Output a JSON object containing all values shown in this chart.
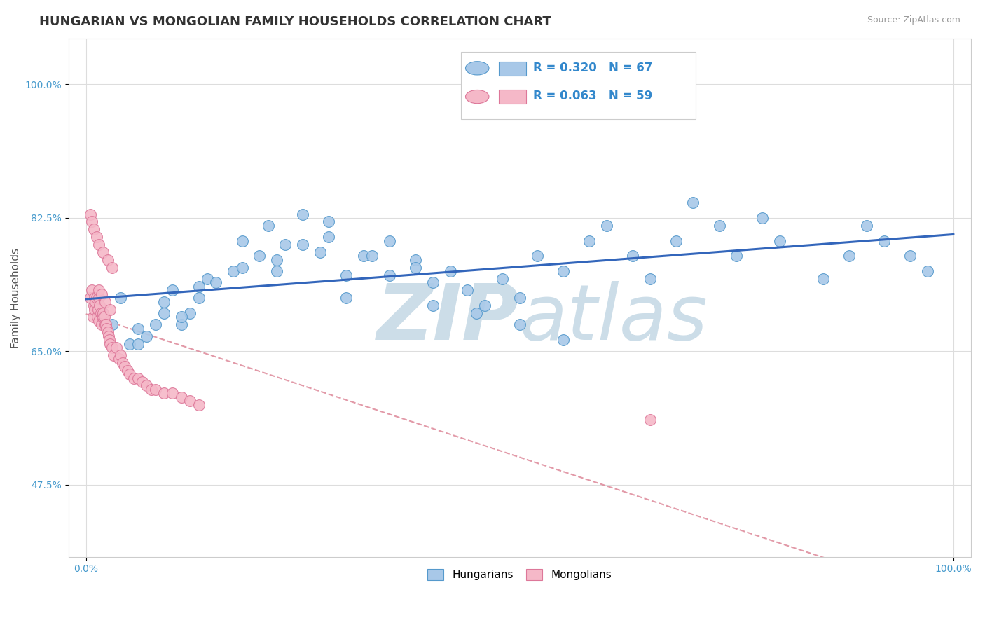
{
  "title": "HUNGARIAN VS MONGOLIAN FAMILY HOUSEHOLDS CORRELATION CHART",
  "source": "Source: ZipAtlas.com",
  "ylabel": "Family Households",
  "ytick_vals": [
    0.475,
    0.65,
    0.825,
    1.0
  ],
  "ytick_labels": [
    "47.5%",
    "65.0%",
    "82.5%",
    "100.0%"
  ],
  "xtick_vals": [
    0.0,
    1.0
  ],
  "xtick_labels": [
    "0.0%",
    "100.0%"
  ],
  "xlim": [
    -0.02,
    1.02
  ],
  "ylim": [
    0.38,
    1.06
  ],
  "hungarian_color": "#a8c8e8",
  "hungarian_edge": "#5599cc",
  "mongolian_color": "#f5b8c8",
  "mongolian_edge": "#dd7799",
  "trend_hungarian_color": "#3366bb",
  "trend_mongolian_color": "#dd8899",
  "watermark_color": "#ccdde8",
  "legend_r_hung": "R = 0.320",
  "legend_n_hung": "N = 67",
  "legend_r_mong": "R = 0.063",
  "legend_n_mong": "N = 59",
  "hung_x": [
    0.02,
    0.03,
    0.04,
    0.05,
    0.06,
    0.08,
    0.09,
    0.1,
    0.11,
    0.12,
    0.13,
    0.14,
    0.15,
    0.17,
    0.18,
    0.2,
    0.21,
    0.22,
    0.23,
    0.25,
    0.27,
    0.28,
    0.3,
    0.32,
    0.35,
    0.38,
    0.4,
    0.42,
    0.44,
    0.46,
    0.48,
    0.5,
    0.52,
    0.55,
    0.58,
    0.6,
    0.63,
    0.65,
    0.68,
    0.7,
    0.73,
    0.75,
    0.78,
    0.8,
    0.85,
    0.88,
    0.9,
    0.92,
    0.95,
    0.97,
    0.06,
    0.07,
    0.09,
    0.11,
    0.13,
    0.25,
    0.3,
    0.35,
    0.4,
    0.45,
    0.5,
    0.55,
    0.22,
    0.18,
    0.28,
    0.33,
    0.38
  ],
  "hung_y": [
    0.7,
    0.685,
    0.72,
    0.66,
    0.66,
    0.685,
    0.7,
    0.73,
    0.685,
    0.7,
    0.72,
    0.745,
    0.74,
    0.755,
    0.795,
    0.775,
    0.815,
    0.77,
    0.79,
    0.83,
    0.78,
    0.82,
    0.75,
    0.775,
    0.795,
    0.77,
    0.74,
    0.755,
    0.73,
    0.71,
    0.745,
    0.72,
    0.775,
    0.755,
    0.795,
    0.815,
    0.775,
    0.745,
    0.795,
    0.845,
    0.815,
    0.775,
    0.825,
    0.795,
    0.745,
    0.775,
    0.815,
    0.795,
    0.775,
    0.755,
    0.68,
    0.67,
    0.715,
    0.695,
    0.735,
    0.79,
    0.72,
    0.75,
    0.71,
    0.7,
    0.685,
    0.665,
    0.755,
    0.76,
    0.8,
    0.775,
    0.76
  ],
  "mong_x": [
    0.005,
    0.007,
    0.008,
    0.009,
    0.01,
    0.01,
    0.011,
    0.012,
    0.013,
    0.014,
    0.015,
    0.015,
    0.016,
    0.017,
    0.018,
    0.019,
    0.02,
    0.02,
    0.021,
    0.022,
    0.023,
    0.024,
    0.025,
    0.026,
    0.027,
    0.028,
    0.03,
    0.032,
    0.035,
    0.038,
    0.04,
    0.042,
    0.045,
    0.048,
    0.05,
    0.055,
    0.06,
    0.065,
    0.07,
    0.075,
    0.08,
    0.09,
    0.1,
    0.11,
    0.12,
    0.13,
    0.015,
    0.018,
    0.022,
    0.028,
    0.005,
    0.007,
    0.009,
    0.012,
    0.015,
    0.02,
    0.025,
    0.03,
    0.65
  ],
  "mong_y": [
    0.72,
    0.73,
    0.695,
    0.71,
    0.72,
    0.705,
    0.715,
    0.72,
    0.695,
    0.705,
    0.69,
    0.72,
    0.71,
    0.7,
    0.685,
    0.695,
    0.695,
    0.7,
    0.695,
    0.685,
    0.685,
    0.68,
    0.675,
    0.67,
    0.665,
    0.66,
    0.655,
    0.645,
    0.655,
    0.64,
    0.645,
    0.635,
    0.63,
    0.625,
    0.62,
    0.615,
    0.615,
    0.61,
    0.605,
    0.6,
    0.6,
    0.595,
    0.595,
    0.59,
    0.585,
    0.58,
    0.73,
    0.725,
    0.715,
    0.705,
    0.83,
    0.82,
    0.81,
    0.8,
    0.79,
    0.78,
    0.77,
    0.76,
    0.56
  ],
  "title_fontsize": 13,
  "tick_fontsize": 10,
  "ylabel_fontsize": 11,
  "source_fontsize": 9,
  "legend_fontsize": 12
}
